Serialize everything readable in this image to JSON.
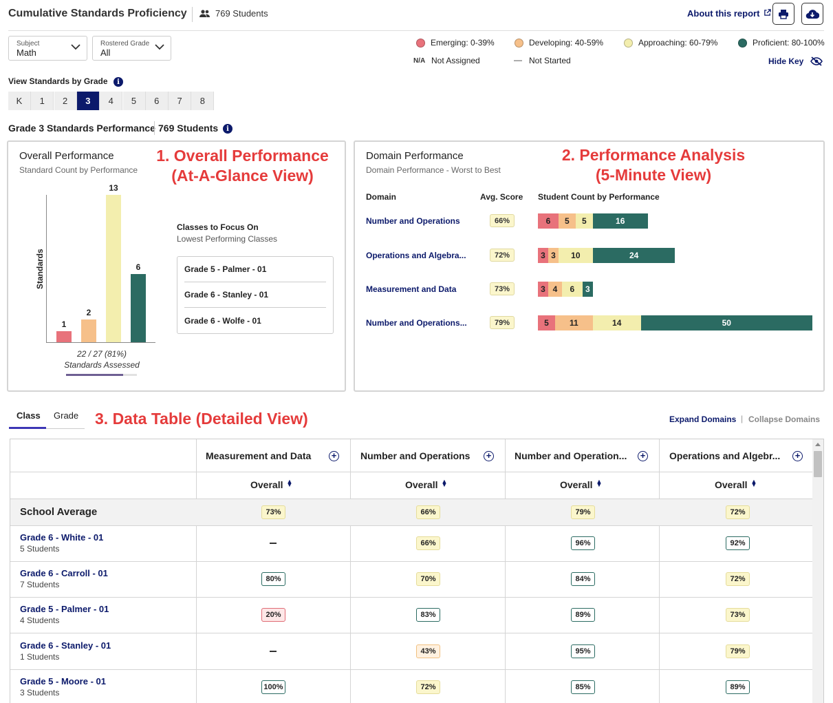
{
  "header": {
    "title": "Cumulative Standards Proficiency",
    "student_count": "769 Students",
    "about_link": "About this report",
    "print_icon": "print-icon",
    "download_icon": "cloud-download-icon"
  },
  "filters": {
    "subject": {
      "label": "Subject",
      "value": "Math"
    },
    "grade": {
      "label": "Rostered Grade",
      "value": "All"
    }
  },
  "key": {
    "items": [
      {
        "label": "Emerging: 0-39%",
        "color": "#e8727b"
      },
      {
        "label": "Developing: 40-59%",
        "color": "#f6c08a"
      },
      {
        "label": "Approaching: 60-79%",
        "color": "#f3eeae"
      },
      {
        "label": "Proficient: 80-100%",
        "color": "#2b6b62"
      }
    ],
    "na_symbol": "N/A",
    "na_label": "Not Assigned",
    "ns_symbol": "—",
    "ns_label": "Not Started",
    "hide_key": "Hide Key"
  },
  "grade_selector": {
    "label": "View Standards by Grade",
    "grades": [
      "K",
      "1",
      "2",
      "3",
      "4",
      "5",
      "6",
      "7",
      "8"
    ],
    "selected": "3"
  },
  "section": {
    "title": "Grade 3 Standards Performance",
    "students": "769 Students"
  },
  "overall": {
    "title": "Overall Performance",
    "subtitle": "Standard Count by Performance",
    "annotation_line1": "1. Overall Performance",
    "annotation_line2": "(At-A-Glance View)",
    "y_label": "Standards",
    "summary": "22 / 27 (81%)",
    "summary_sub": "Standards Assessed",
    "progress": 0.81,
    "focus_title": "Classes to Focus On",
    "focus_sub": "Lowest Performing Classes",
    "focus_classes": [
      "Grade 5 - Palmer - 01",
      "Grade 6 - Stanley - 01",
      "Grade 6 - Wolfe - 01"
    ]
  },
  "domain": {
    "title": "Domain Performance",
    "subtitle": "Domain Performance - Worst to Best",
    "annotation_line1": "2. Performance Analysis",
    "annotation_line2": "(5-Minute View)",
    "col_domain": "Domain",
    "col_avg": "Avg. Score",
    "col_count": "Student Count by Performance",
    "rows": [
      {
        "name": "Number and Operations",
        "avg": "66%",
        "counts": [
          6,
          5,
          5,
          16
        ]
      },
      {
        "name": "Operations and Algebra...",
        "avg": "72%",
        "counts": [
          3,
          3,
          10,
          24
        ]
      },
      {
        "name": "Measurement and Data",
        "avg": "73%",
        "counts": [
          3,
          4,
          6,
          3
        ]
      },
      {
        "name": "Number and Operations...",
        "avg": "79%",
        "counts": [
          5,
          11,
          14,
          50
        ]
      }
    ]
  },
  "table_section": {
    "tabs": [
      "Class",
      "Grade"
    ],
    "annotation": "3. Data Table (Detailed View)",
    "expand": "Expand Domains",
    "separator": "|",
    "collapse": "Collapse Domains",
    "columns": [
      "Measurement and Data",
      "Number and Operations",
      "Number and Operation...",
      "Operations and Algebr..."
    ],
    "overall_label": "Overall",
    "school_avg": {
      "label": "School Average",
      "values": [
        "73%",
        "66%",
        "79%",
        "72%"
      ]
    },
    "rows": [
      {
        "name": "Grade 6 - White - 01",
        "students": "5 Students",
        "values": [
          "—",
          "66%",
          "96%",
          "92%"
        ]
      },
      {
        "name": "Grade 6 - Carroll - 01",
        "students": "7 Students",
        "values": [
          "80%",
          "70%",
          "84%",
          "72%"
        ]
      },
      {
        "name": "Grade 5 - Palmer - 01",
        "students": "4 Students",
        "values": [
          "20%",
          "83%",
          "89%",
          "73%"
        ]
      },
      {
        "name": "Grade 6 - Stanley - 01",
        "students": "1 Students",
        "values": [
          "—",
          "43%",
          "95%",
          "79%"
        ]
      },
      {
        "name": "Grade 5 - Moore - 01",
        "students": "3 Students",
        "values": [
          "100%",
          "72%",
          "85%",
          "89%"
        ]
      }
    ]
  },
  "chart_data": {
    "type": "bar",
    "title": "Overall Performance",
    "subtitle": "Standard Count by Performance",
    "categories": [
      "Emerging",
      "Developing",
      "Approaching",
      "Proficient"
    ],
    "values": [
      1,
      2,
      13,
      6
    ],
    "colors": [
      "#e8727b",
      "#f6c08a",
      "#f3eeae",
      "#2b6b62"
    ],
    "xlabel": "",
    "ylabel": "Standards",
    "ylim": [
      0,
      13
    ]
  }
}
